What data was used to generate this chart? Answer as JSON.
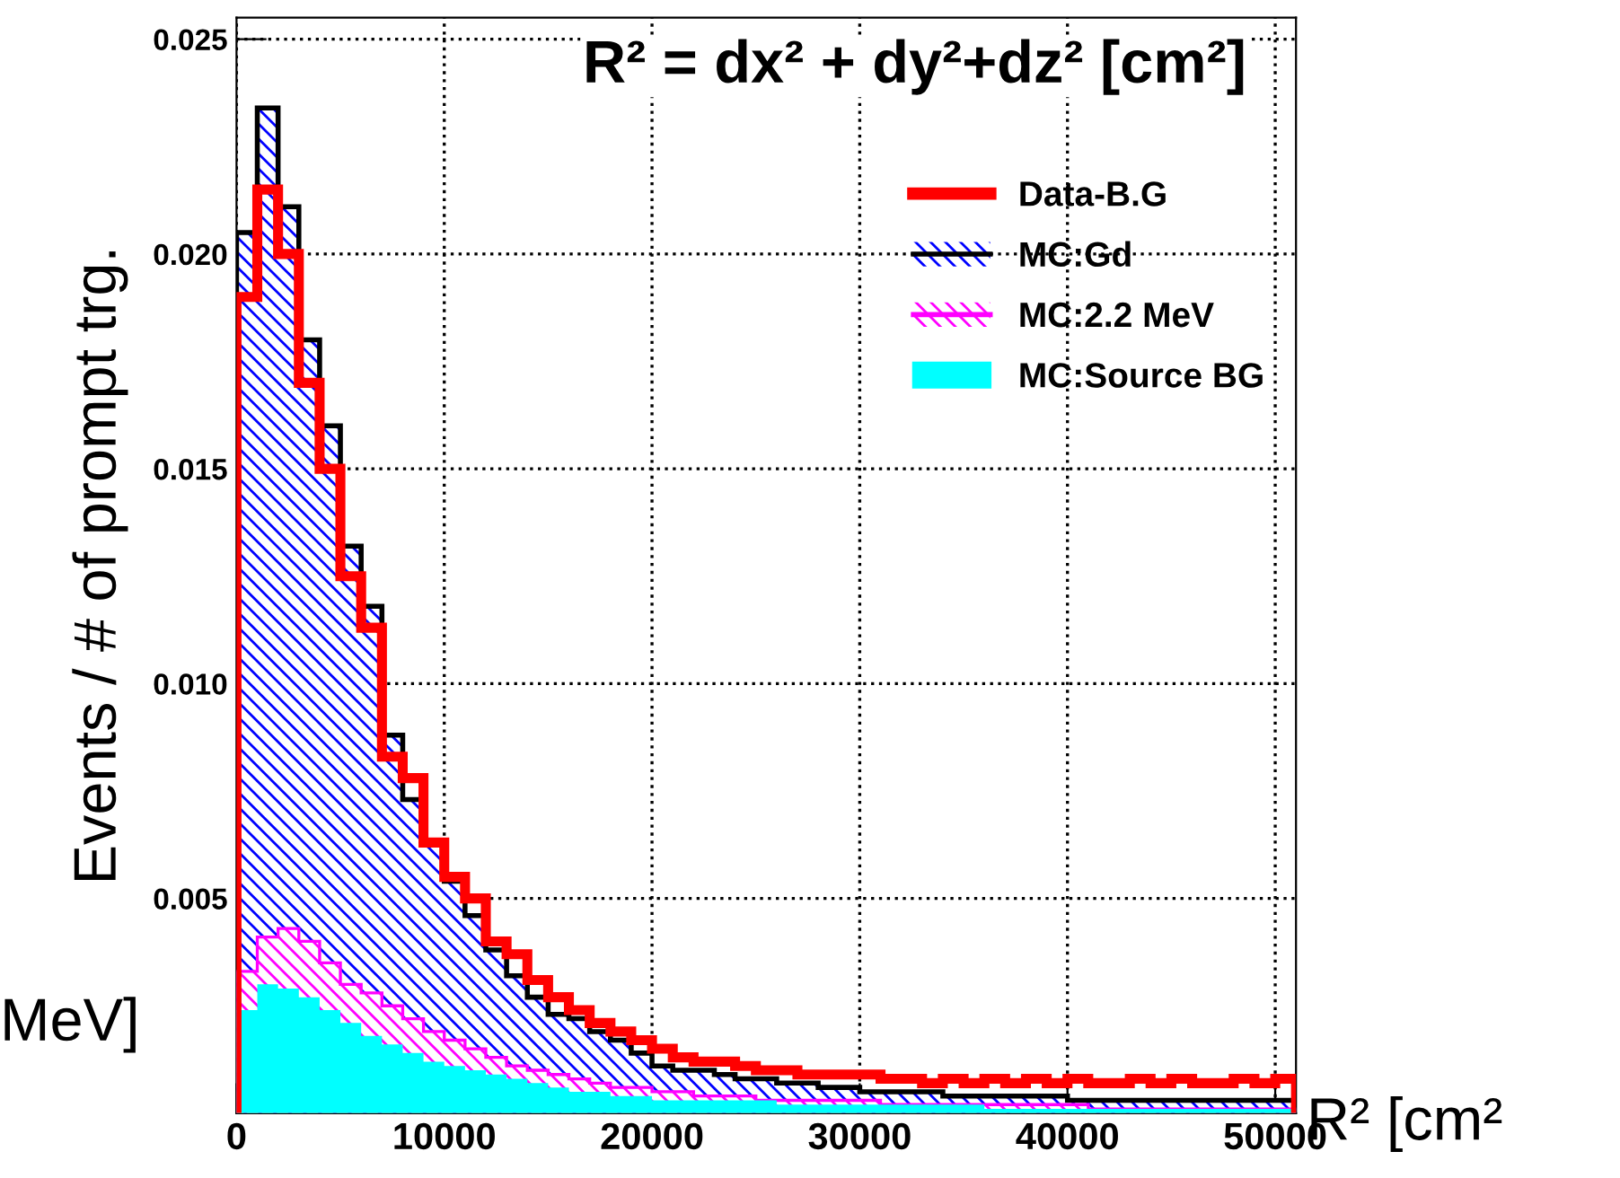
{
  "chart_data": {
    "type": "histogram",
    "title": "R² = dx² + dy²+dz² [cm²]",
    "ylabel": "Events / # of prompt trg.",
    "xlabel": "R² [cm²",
    "annotations": [
      "MeV]"
    ],
    "bins": [
      0,
      1000,
      2000,
      3000,
      4000,
      5000,
      6000,
      7000,
      8000,
      9000,
      10000,
      11000,
      12000,
      13000,
      14000,
      15000,
      16000,
      17000,
      18000,
      19000,
      20000,
      21000,
      22000,
      23000,
      24000,
      25000,
      26000,
      27000,
      28000,
      29000,
      30000,
      31000,
      32000,
      33000,
      34000,
      35000,
      36000,
      37000,
      38000,
      39000,
      40000,
      41000,
      42000,
      43000,
      44000,
      45000,
      46000,
      47000,
      48000,
      49000,
      50000,
      51000
    ],
    "series": [
      {
        "name": "MC:Gd",
        "color": "#0000ff",
        "values": [
          0.0205,
          0.0234,
          0.0211,
          0.018,
          0.016,
          0.0132,
          0.0118,
          0.0088,
          0.0073,
          0.0063,
          0.0054,
          0.0046,
          0.0038,
          0.0032,
          0.0027,
          0.0023,
          0.0022,
          0.0019,
          0.0017,
          0.0014,
          0.0011,
          0.001,
          0.001,
          0.0009,
          0.0008,
          0.0008,
          0.0007,
          0.0007,
          0.0006,
          0.0006,
          0.0005,
          0.0005,
          0.0005,
          0.0005,
          0.0004,
          0.0004,
          0.0004,
          0.0004,
          0.0004,
          0.0004,
          0.0003,
          0.0003,
          0.0003,
          0.0003,
          0.0003,
          0.0003,
          0.0003,
          0.0003,
          0.0003,
          0.0003,
          0.0003
        ]
      },
      {
        "name": "MC:2.2 MeV",
        "color": "#ff00ff",
        "values": [
          0.0033,
          0.0041,
          0.0043,
          0.004,
          0.0035,
          0.003,
          0.0028,
          0.0025,
          0.0022,
          0.0019,
          0.0017,
          0.0015,
          0.0013,
          0.0011,
          0.001,
          0.0009,
          0.0008,
          0.0007,
          0.0006,
          0.0006,
          0.0005,
          0.0005,
          0.0004,
          0.0004,
          0.0004,
          0.0003,
          0.0003,
          0.0003,
          0.0003,
          0.0003,
          0.0003,
          0.0002,
          0.0002,
          0.0002,
          0.0002,
          0.0002,
          0.0002,
          0.0002,
          0.0002,
          0.0002,
          0.0002,
          0.0001,
          0.0001,
          0.0001,
          0.0001,
          0.0001,
          0.0001,
          0.0001,
          0.0001,
          0.0001,
          0.0001
        ]
      },
      {
        "name": "MC:Source BG",
        "color": "#00ffff",
        "values": [
          0.0024,
          0.003,
          0.0029,
          0.0027,
          0.0024,
          0.0021,
          0.0018,
          0.0016,
          0.0014,
          0.0012,
          0.0011,
          0.001,
          0.0009,
          0.0008,
          0.0007,
          0.0006,
          0.0005,
          0.0005,
          0.0004,
          0.0004,
          0.0003,
          0.0003,
          0.0003,
          0.0003,
          0.0003,
          0.0003,
          0.0002,
          0.0002,
          0.0002,
          0.0002,
          0.0002,
          0.0002,
          0.0002,
          0.0002,
          0.0002,
          0.0002,
          0.0001,
          0.0001,
          0.0001,
          0.0001,
          0.0001,
          0.0001,
          0.0001,
          0.0001,
          0.0001,
          0.0001,
          0.0001,
          0.0001,
          0.0001,
          0.0001,
          0.0001
        ]
      },
      {
        "name": "Data-B.G",
        "color": "#ff0000",
        "values": [
          0.019,
          0.0215,
          0.02,
          0.017,
          0.015,
          0.0125,
          0.0113,
          0.0083,
          0.0078,
          0.0063,
          0.0055,
          0.005,
          0.004,
          0.0037,
          0.0031,
          0.0027,
          0.0024,
          0.0021,
          0.0019,
          0.0017,
          0.0015,
          0.0013,
          0.0012,
          0.0012,
          0.0011,
          0.001,
          0.001,
          0.0009,
          0.0009,
          0.0009,
          0.0009,
          0.0008,
          0.0008,
          0.0007,
          0.0008,
          0.0007,
          0.0008,
          0.0007,
          0.0008,
          0.0007,
          0.0008,
          0.0007,
          0.0007,
          0.0008,
          0.0007,
          0.0008,
          0.0007,
          0.0007,
          0.0008,
          0.0007,
          0.0008
        ]
      }
    ],
    "xlim": [
      0,
      51000
    ],
    "ylim": [
      0,
      0.0255
    ],
    "xticks": [
      0,
      10000,
      20000,
      30000,
      40000,
      50000
    ],
    "yticks": [
      0.005,
      {
        "value": 0.01,
        "label": "0.010"
      },
      0.015,
      {
        "value": 0.02,
        "label": "0.020"
      },
      0.025
    ],
    "grid": true,
    "legend": "top right"
  }
}
